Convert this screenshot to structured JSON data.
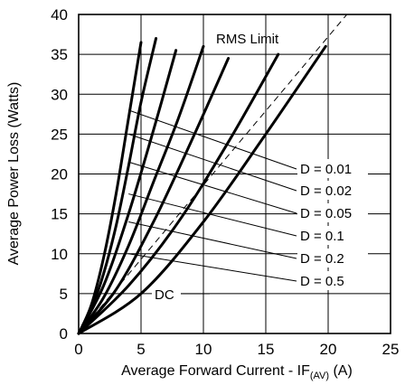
{
  "chart_data": {
    "type": "line",
    "xlabel": "Average Forward Current - IF(AV) (A)",
    "xlabel_main": "Average Forward Current - I",
    "xlabel_sub_letter": "F",
    "xlabel_subscript": "(AV)",
    "xlabel_unit": " (A)",
    "ylabel": "Average Power Loss (Watts)",
    "xlim": [
      0,
      25
    ],
    "ylim": [
      0,
      40
    ],
    "xticks": [
      "0",
      "5",
      "10",
      "15",
      "20",
      "25"
    ],
    "yticks": [
      "0",
      "5",
      "10",
      "15",
      "20",
      "25",
      "30",
      "35",
      "40"
    ],
    "grid": true,
    "series": [
      {
        "name": "D = 0.01",
        "x": [
          0,
          1,
          2,
          3,
          4,
          5
        ],
        "y": [
          0,
          3.5,
          9.5,
          17.5,
          27,
          36.5
        ]
      },
      {
        "name": "D = 0.02",
        "x": [
          0,
          1,
          2,
          3,
          4,
          5,
          6.2
        ],
        "y": [
          0,
          3,
          7.5,
          13.5,
          21,
          29,
          37
        ]
      },
      {
        "name": "D = 0.05",
        "x": [
          0,
          2,
          4,
          6,
          7.8
        ],
        "y": [
          0,
          6,
          15,
          25.5,
          35.5
        ]
      },
      {
        "name": "D = 0.1",
        "x": [
          0,
          2,
          4,
          6,
          8,
          10
        ],
        "y": [
          0,
          4.5,
          11,
          19,
          27,
          36
        ]
      },
      {
        "name": "D = 0.2",
        "x": [
          0,
          3,
          6,
          9,
          12
        ],
        "y": [
          0,
          5.5,
          14,
          24,
          34.5
        ]
      },
      {
        "name": "D = 0.5",
        "x": [
          0,
          4,
          8,
          12,
          16
        ],
        "y": [
          0,
          6,
          14,
          24,
          35
        ]
      },
      {
        "name": "DC",
        "x": [
          0,
          5,
          10,
          15,
          19.8
        ],
        "y": [
          0,
          5,
          14,
          25,
          36
        ]
      }
    ],
    "rms_limit": {
      "label": "RMS Limit",
      "x": [
        0,
        21.5
      ],
      "y": [
        0,
        40
      ]
    },
    "annotations": [
      {
        "text": "RMS Limit",
        "at": [
          21.5,
          40
        ]
      },
      {
        "text": "DC",
        "at": [
          5.5,
          5.2
        ]
      },
      {
        "text": "D = 0.01",
        "from": [
          4,
          28
        ]
      },
      {
        "text": "D = 0.02",
        "from": [
          4,
          25
        ]
      },
      {
        "text": "D = 0.05",
        "from": [
          4,
          21.5
        ]
      },
      {
        "text": "D = 0.1",
        "from": [
          4,
          17.5
        ]
      },
      {
        "text": "D = 0.2",
        "from": [
          4,
          14
        ]
      },
      {
        "text": "D = 0.5",
        "from": [
          4,
          10
        ]
      }
    ]
  }
}
